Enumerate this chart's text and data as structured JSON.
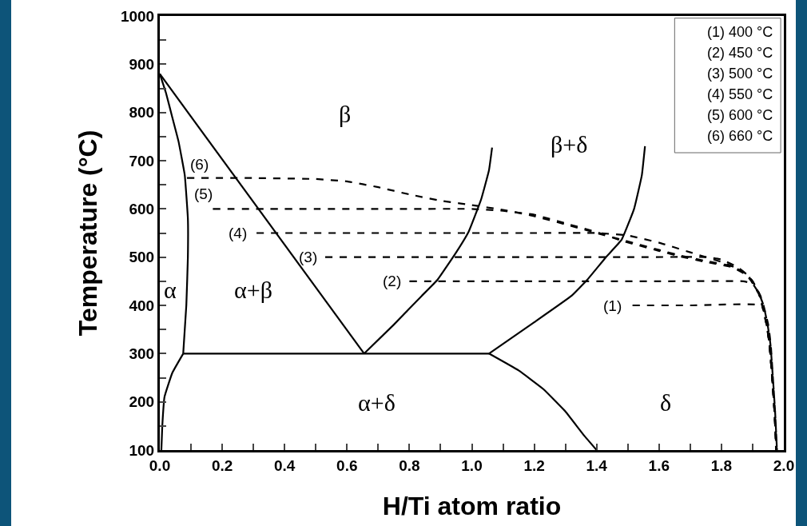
{
  "chart_data": {
    "type": "line",
    "xlabel": "H/Ti atom ratio",
    "ylabel": "Temperature (°C)",
    "xlim": [
      0,
      2
    ],
    "ylim": [
      100,
      1000
    ],
    "xticks": [
      {
        "value": 0,
        "label": "0.0"
      },
      {
        "value": 0.1,
        "label": null
      },
      {
        "value": 0.2,
        "label": "0.2"
      },
      {
        "value": 0.3,
        "label": null
      },
      {
        "value": 0.4,
        "label": "0.4"
      },
      {
        "value": 0.5,
        "label": null
      },
      {
        "value": 0.6,
        "label": "0.6"
      },
      {
        "value": 0.7,
        "label": null
      },
      {
        "value": 0.8,
        "label": "0.8"
      },
      {
        "value": 0.9,
        "label": null
      },
      {
        "value": 1,
        "label": "1.0"
      },
      {
        "value": 1.1,
        "label": null
      },
      {
        "value": 1.2,
        "label": "1.2"
      },
      {
        "value": 1.3,
        "label": null
      },
      {
        "value": 1.4,
        "label": "1.4"
      },
      {
        "value": 1.5,
        "label": null
      },
      {
        "value": 1.6,
        "label": "1.6"
      },
      {
        "value": 1.7,
        "label": null
      },
      {
        "value": 1.8,
        "label": "1.8"
      },
      {
        "value": 1.9,
        "label": null
      },
      {
        "value": 2,
        "label": "2.0"
      }
    ],
    "yticks": [
      100,
      {
        "value": 150,
        "label": null
      },
      200,
      {
        "value": 250,
        "label": null
      },
      300,
      {
        "value": 350,
        "label": null
      },
      400,
      {
        "value": 450,
        "label": null
      },
      500,
      {
        "value": 550,
        "label": null
      },
      600,
      {
        "value": 650,
        "label": null
      },
      700,
      {
        "value": 750,
        "label": null
      },
      800,
      {
        "value": 850,
        "label": null
      },
      900,
      {
        "value": 950,
        "label": null
      },
      1000
    ],
    "grid": false,
    "marker": "none",
    "series": [
      {
        "color": "#000000",
        "line_style": "solid",
        "x": [
          0,
          0.02,
          0.04,
          0.06,
          0.08,
          0.09,
          0.09,
          0.085,
          0.075
        ],
        "values": [
          880,
          840,
          790,
          740,
          670,
          580,
          500,
          400,
          300
        ]
      },
      {
        "color": "#000000",
        "line_style": "solid",
        "x": [
          0.075,
          0.04,
          0.015,
          0.008,
          0.005
        ],
        "values": [
          300,
          260,
          210,
          150,
          100
        ]
      },
      {
        "color": "#000000",
        "line_style": "solid",
        "x": [
          0,
          0.655
        ],
        "values": [
          880,
          300
        ]
      },
      {
        "color": "#000000",
        "line_style": "solid",
        "x": [
          0.655,
          0.75,
          0.84,
          0.89,
          0.95,
          0.99,
          1.03,
          1.055,
          1.065
        ],
        "values": [
          300,
          360,
          420,
          453,
          510,
          553,
          620,
          680,
          727
        ]
      },
      {
        "color": "#000000",
        "line_style": "solid",
        "x": [
          1.055,
          1.2,
          1.32,
          1.37,
          1.43,
          1.48,
          1.52,
          1.545,
          1.555
        ],
        "values": [
          300,
          365,
          420,
          453,
          500,
          536,
          600,
          670,
          730
        ]
      },
      {
        "color": "#000000",
        "line_style": "solid",
        "x": [
          1.055,
          1.15,
          1.23,
          1.3,
          1.36,
          1.4
        ],
        "values": [
          300,
          265,
          226,
          180,
          130,
          100
        ]
      },
      {
        "color": "#000000",
        "line_style": "solid",
        "x": [
          0.075,
          1.055
        ],
        "values": [
          300,
          300
        ]
      },
      {
        "color": "#000000",
        "line_style": "dashed",
        "x": [
          0.087,
          0.3,
          0.5,
          0.6,
          0.7,
          0.8,
          0.9,
          1.0,
          1.1,
          1.2,
          1.3,
          1.4,
          1.48,
          1.6,
          1.67,
          1.75,
          1.835,
          1.88,
          1.895,
          1.92,
          1.93,
          1.945,
          1.954,
          1.964,
          1.97,
          1.977
        ],
        "values": [
          664,
          664,
          662,
          657,
          645,
          630,
          617,
          608,
          598,
          585,
          568,
          550,
          536,
          515,
          503,
          492,
          481,
          465,
          453,
          425,
          403,
          360,
          320,
          238,
          180,
          100
        ]
      },
      {
        "color": "#000000",
        "line_style": "dashed",
        "x": [
          0.17,
          0.5,
          0.8,
          1.0,
          1.1,
          1.2,
          1.3,
          1.4,
          1.48,
          1.6,
          1.67,
          1.75,
          1.835,
          1.88,
          1.895,
          1.92,
          1.93,
          1.945,
          1.954,
          1.964,
          1.97,
          1.975
        ],
        "values": [
          600,
          600,
          600,
          600,
          596,
          588,
          570,
          552,
          534,
          513,
          501,
          490,
          479,
          463,
          451,
          423,
          401,
          358,
          318,
          236,
          178,
          100
        ]
      },
      {
        "color": "#000000",
        "line_style": "dashed",
        "x": [
          0.31,
          0.8,
          1.2,
          1.4,
          1.5,
          1.6,
          1.7,
          1.8,
          1.835,
          1.88,
          1.9,
          1.925,
          1.935,
          1.95,
          1.958,
          1.966,
          1.972,
          1.978
        ],
        "values": [
          550,
          550,
          550,
          550,
          545,
          530,
          510,
          490,
          481,
          465,
          450,
          420,
          400,
          360,
          320,
          240,
          180,
          100
        ]
      },
      {
        "color": "#000000",
        "line_style": "dashed",
        "x": [
          0.53,
          1.0,
          1.5,
          1.75,
          1.8,
          1.85,
          1.88,
          1.9,
          1.92,
          1.93,
          1.945,
          1.954,
          1.964,
          1.97,
          1.976
        ],
        "values": [
          500,
          500,
          500,
          500,
          495,
          480,
          465,
          450,
          425,
          403,
          360,
          320,
          238,
          180,
          100
        ]
      },
      {
        "color": "#000000",
        "line_style": "dashed",
        "x": [
          0.8,
          1.2,
          1.6,
          1.87,
          1.9,
          1.92,
          1.935,
          1.948,
          1.957,
          1.966,
          1.972,
          1.978
        ],
        "values": [
          450,
          450,
          450,
          450,
          445,
          425,
          400,
          360,
          320,
          240,
          180,
          100
        ]
      },
      {
        "color": "#000000",
        "line_style": "dashed",
        "x": [
          1.515,
          1.7,
          1.93,
          1.945,
          1.954,
          1.964,
          1.97,
          1.976
        ],
        "values": [
          400,
          400,
          400,
          360,
          320,
          238,
          180,
          100
        ]
      }
    ],
    "annotations": [
      "β",
      "β+δ",
      "α",
      "α+β",
      "α+δ",
      "δ",
      "(6)",
      "(5)",
      "(4)",
      "(3)",
      "(2)",
      "(1)",
      "(1) 400 °C",
      "(2) 450 °C",
      "(3) 500 °C",
      "(4) 550 °C",
      "(5) 600 °C",
      "(6) 660 °C"
    ]
  }
}
